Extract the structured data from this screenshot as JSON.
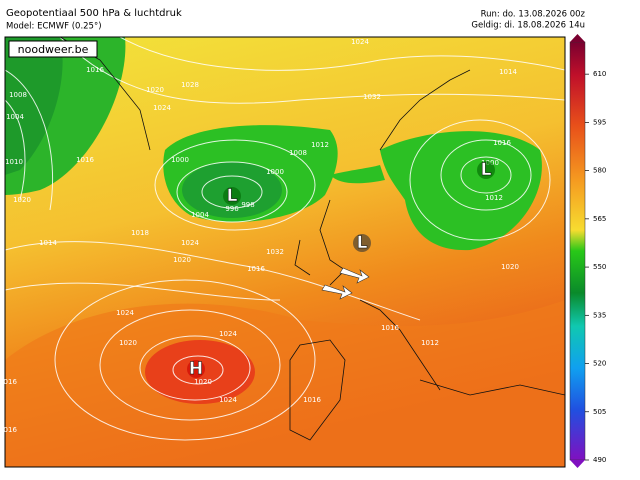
{
  "header": {
    "title": "Geopotentiaal 500 hPa & luchtdruk",
    "model": "Model: ECMWF (0.25°)",
    "run": "Run: do. 13.08.2026 00z",
    "valid": "Geldig: di. 18.08.2026 14u",
    "logo": "noodweer.be"
  },
  "centers": [
    "H",
    "L",
    "L",
    "L"
  ],
  "isobar_labels": [
    "1016",
    "1008",
    "1004",
    "1010",
    "1020",
    "1020",
    "1024",
    "1028",
    "1016",
    "1014",
    "1018",
    "1020",
    "1024",
    "1032",
    "1016",
    "1012",
    "1000",
    "1008",
    "996",
    "998",
    "1004",
    "1000",
    "1032",
    "1024",
    "1014",
    "1016",
    "1000",
    "1012",
    "1020",
    "1024",
    "1020",
    "1024",
    "1020",
    "1016",
    "1016",
    "1024",
    "1016",
    "1016",
    "1012"
  ],
  "colorbar": {
    "range": [
      490,
      620
    ],
    "ticks": [
      490,
      505,
      520,
      535,
      550,
      565,
      580,
      595,
      610
    ]
  }
}
